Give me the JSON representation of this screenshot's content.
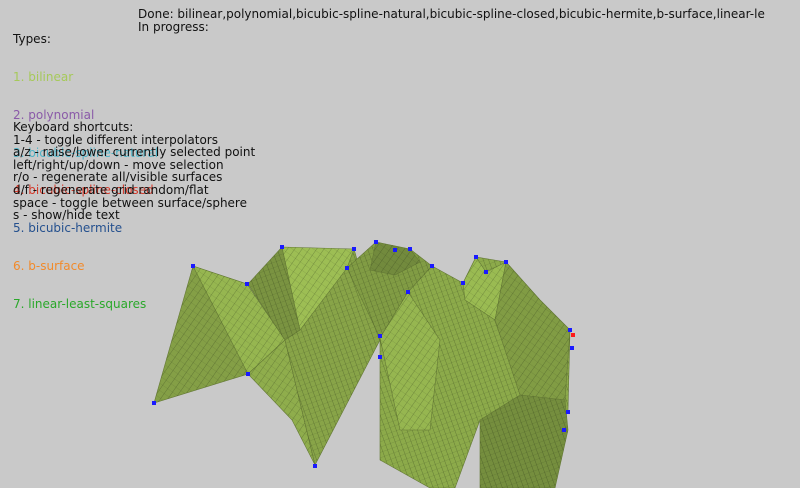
{
  "types": {
    "heading": "Types:",
    "items": [
      {
        "label": "1. bilinear",
        "color": "#a6c95a"
      },
      {
        "label": "2. polynomial",
        "color": "#8a5aa8"
      },
      {
        "label": "3. bicubic-spline-natural",
        "color": "#4fb3c6"
      },
      {
        "label": "4. bicubic-spline-closed",
        "color": "#d43b2c"
      },
      {
        "label": "5. bicubic-hermite",
        "color": "#24508e"
      },
      {
        "label": "6. b-surface",
        "color": "#f28a2a"
      },
      {
        "label": "7. linear-least-squares",
        "color": "#2aa82a"
      }
    ]
  },
  "status": {
    "done": "Done: bilinear,polynomial,bicubic-spline-natural,bicubic-spline-closed,bicubic-hermite,b-surface,linear-le",
    "in_progress": "In progress:"
  },
  "shortcuts": {
    "heading": "Keyboard shortcuts:",
    "lines": [
      "1-4 - toggle different interpolators",
      "a/z - raise/lower currently selected point",
      "left/right/up/down - move selection",
      "r/o - regenerate all/visible surfaces",
      "d/f - regenerate grid random/flat",
      "space - toggle between surface/sphere",
      "s - show/hide text"
    ]
  },
  "scene": {
    "surface_color": "#8fad4c",
    "control_point_color": "#1a1aff",
    "selected_point_color": "#ff1a1a"
  }
}
